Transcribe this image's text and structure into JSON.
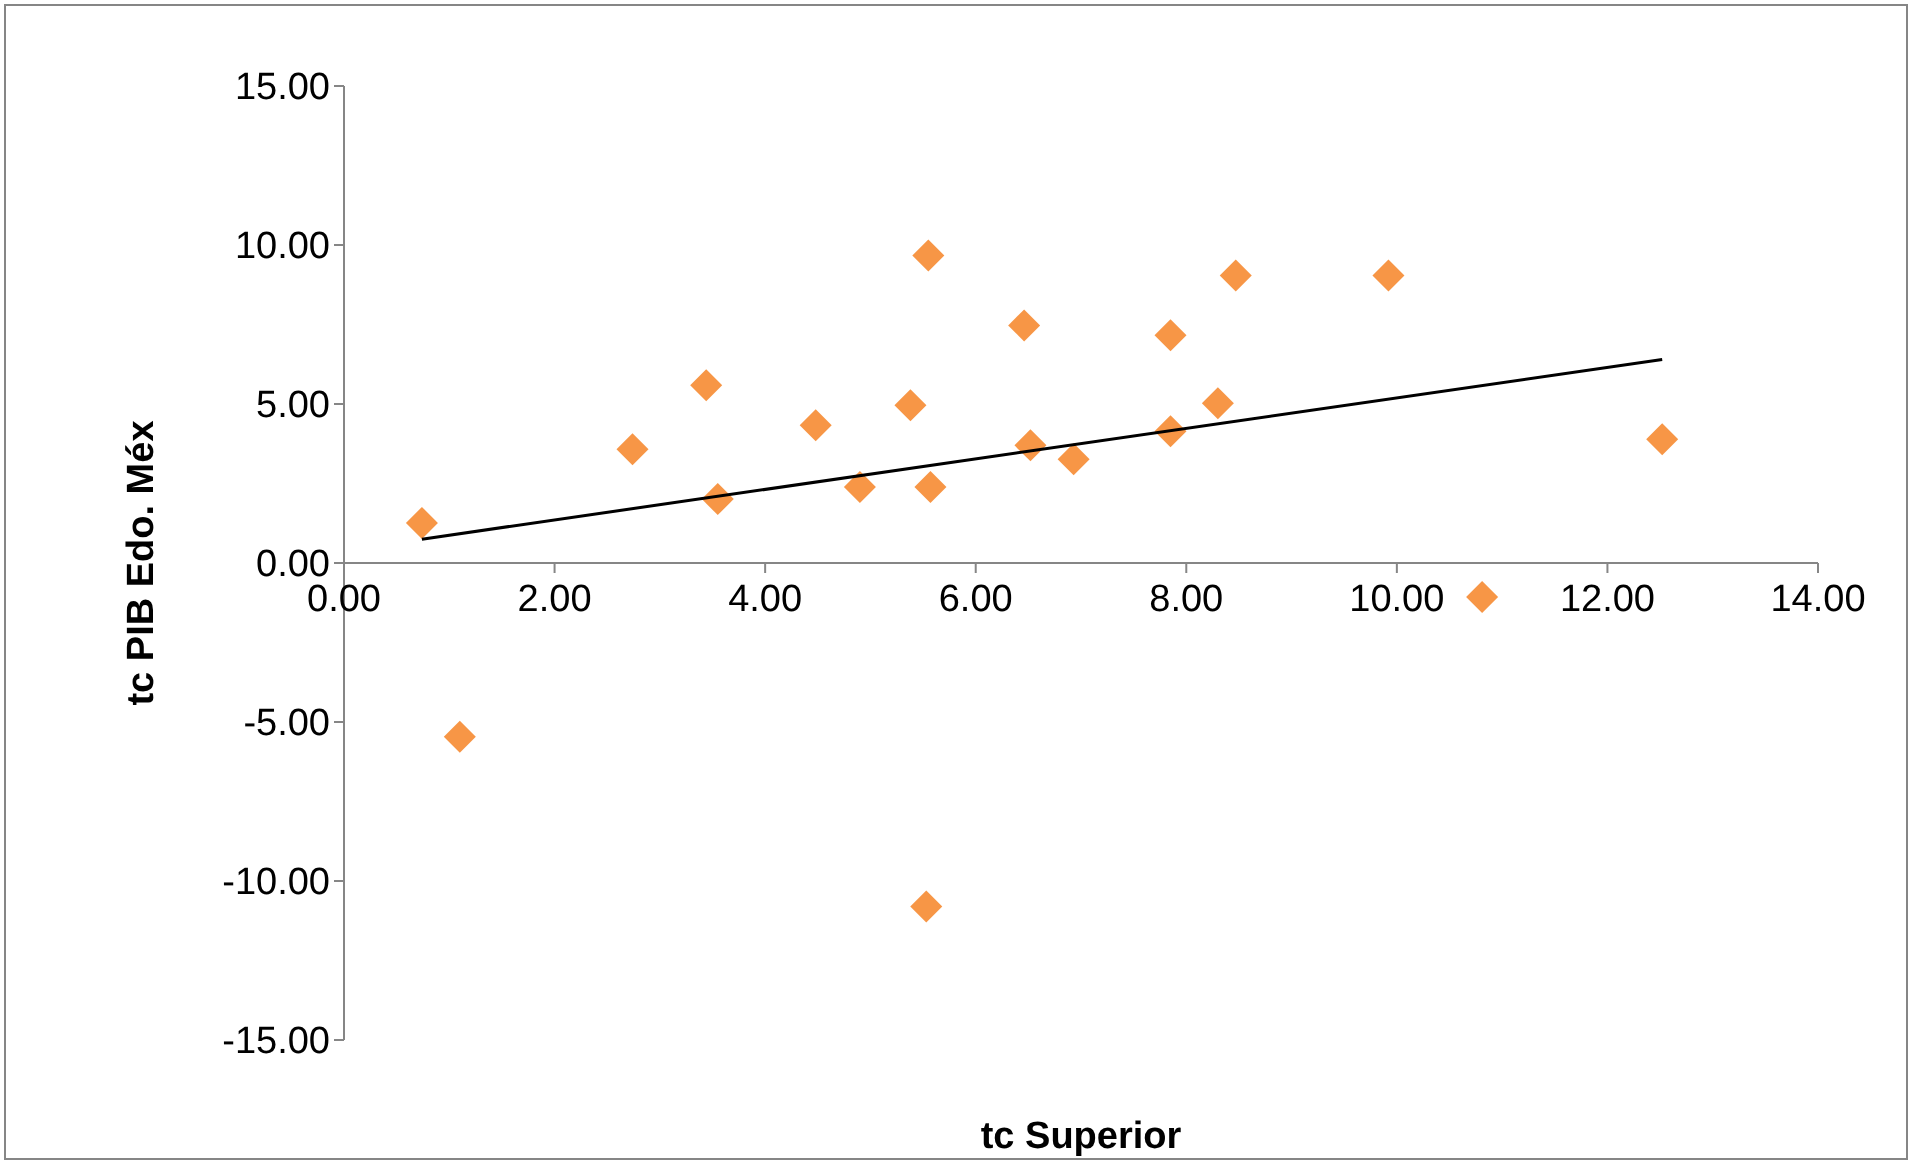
{
  "chart_data": {
    "type": "scatter",
    "xlabel": "tc Superior",
    "ylabel": "tc PIB Edo. Méx",
    "grid": false,
    "legend": false,
    "xlim": [
      0,
      14
    ],
    "xticks": [
      {
        "value": 0,
        "label": "0.00"
      },
      {
        "value": 2,
        "label": "2.00"
      },
      {
        "value": 4,
        "label": "4.00"
      },
      {
        "value": 6,
        "label": "6.00"
      },
      {
        "value": 8,
        "label": "8.00"
      },
      {
        "value": 10,
        "label": "10.00"
      },
      {
        "value": 12,
        "label": "12.00"
      },
      {
        "value": 14,
        "label": "14.00"
      }
    ],
    "ylim": [
      -15,
      15
    ],
    "yticks": [
      {
        "value": -15,
        "label": "-15.00"
      },
      {
        "value": -10,
        "label": "-10.00"
      },
      {
        "value": -5,
        "label": "-5.00"
      },
      {
        "value": 0,
        "label": "0.00"
      },
      {
        "value": 5,
        "label": "5.00"
      },
      {
        "value": 10,
        "label": "10.00"
      },
      {
        "value": 15,
        "label": "15.00"
      }
    ],
    "series": [
      {
        "marker": "diamond",
        "color": "#f79646",
        "x": [
          0.74,
          1.1,
          2.74,
          3.44,
          3.55,
          4.48,
          4.9,
          5.38,
          5.55,
          5.57,
          5.53,
          6.46,
          6.52,
          6.93,
          7.85,
          7.85,
          8.3,
          8.47,
          9.92,
          10.81,
          12.52
        ],
        "values": [
          1.26,
          -5.46,
          3.58,
          5.59,
          2.01,
          4.33,
          2.39,
          4.96,
          9.67,
          2.39,
          -10.8,
          7.47,
          3.7,
          3.26,
          7.16,
          4.14,
          5.02,
          9.04,
          9.04,
          -1.07,
          3.89
        ]
      },
      {
        "type": "line",
        "marker": "none",
        "color": "#000000",
        "line_style": "solid",
        "x": [
          0.74,
          12.52
        ],
        "values": [
          0.75,
          6.4
        ]
      }
    ]
  }
}
